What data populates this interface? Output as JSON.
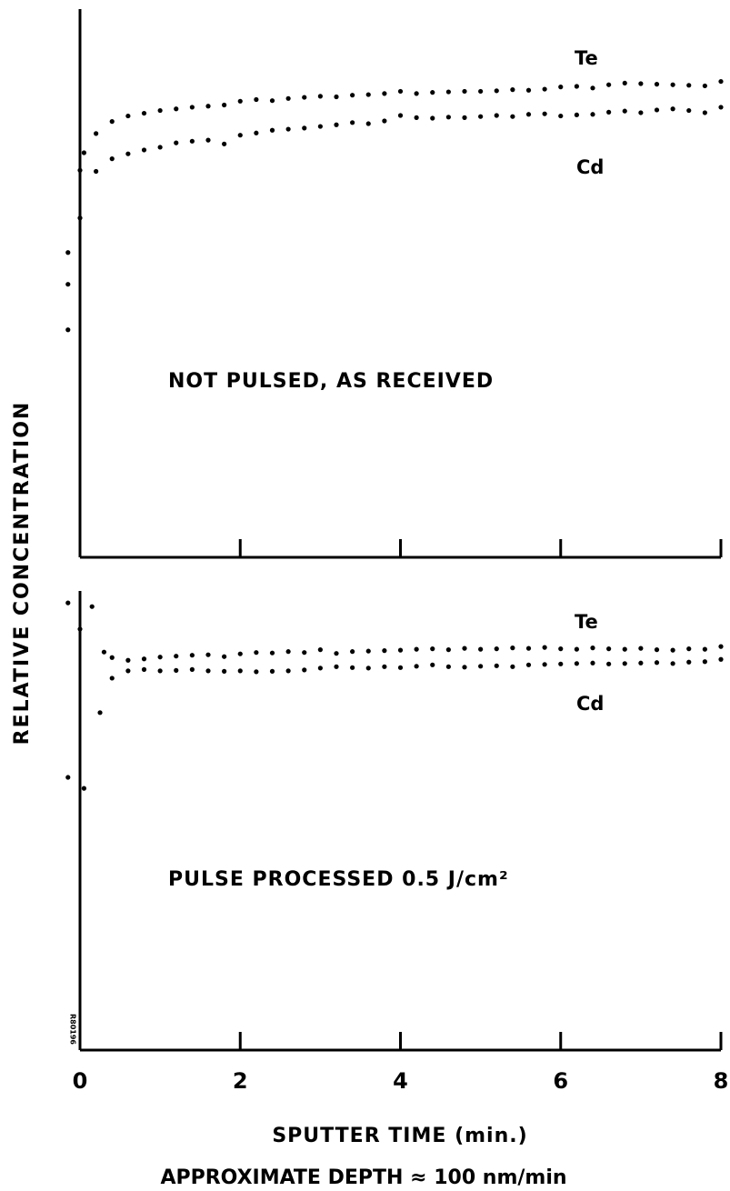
{
  "figure": {
    "ylabel": "RELATIVE CONCENTRATION",
    "xlabel": "SPUTTER TIME (min.)",
    "note": "APPROXIMATE DEPTH ≈ 100 nm/min"
  },
  "chart_data": [
    {
      "type": "scatter",
      "annotation": "NOT PULSED, AS RECEIVED",
      "xlim": [
        0,
        8
      ],
      "xticks": [
        0,
        2,
        4,
        6,
        8
      ],
      "ylim": [
        0,
        100
      ],
      "series": [
        {
          "name": "Te",
          "color": "#000000",
          "x": [
            -0.15,
            -0.15,
            -0.15,
            0,
            0.2,
            0.4,
            0.6,
            0.8,
            1.0,
            1.2,
            1.4,
            1.6,
            1.8,
            2.0,
            2.2,
            2.4,
            2.6,
            2.8,
            3.0,
            3.2,
            3.4,
            3.6,
            3.8,
            4.0,
            4.2,
            4.4,
            4.6,
            4.8,
            5.0,
            5.2,
            5.4,
            5.6,
            5.8,
            6.0,
            6.2,
            6.4,
            6.6,
            6.8,
            7.0,
            7.2,
            7.4,
            7.6,
            7.8,
            8.0
          ],
          "values": [
            41.5,
            49.8,
            55.6,
            61.9,
            77.3,
            79.5,
            80.5,
            81,
            81.5,
            81.8,
            82.1,
            82.3,
            82.5,
            83.2,
            83.5,
            83.3,
            83.7,
            83.9,
            84.1,
            84,
            84.3,
            84.4,
            84.6,
            85,
            84.6,
            84.8,
            84.9,
            85,
            85,
            85.1,
            85.3,
            85.2,
            85.4,
            85.8,
            85.9,
            85.6,
            86.2,
            86.5,
            86.4,
            86.3,
            86.2,
            86.1,
            86,
            86.8
          ]
        },
        {
          "name": "Cd",
          "color": "#000000",
          "x": [
            0,
            0.05,
            0.2,
            0.4,
            0.6,
            0.8,
            1.0,
            1.2,
            1.4,
            1.6,
            1.8,
            2.0,
            2.2,
            2.4,
            2.6,
            2.8,
            3.0,
            3.2,
            3.4,
            3.6,
            3.8,
            4.0,
            4.2,
            4.4,
            4.6,
            4.8,
            5.0,
            5.2,
            5.4,
            5.6,
            5.8,
            6.0,
            6.2,
            6.4,
            6.6,
            6.8,
            7.0,
            7.2,
            7.4,
            7.6,
            7.8,
            8.0
          ],
          "values": [
            70.6,
            73.8,
            70.4,
            72.7,
            73.6,
            74.3,
            74.8,
            75.6,
            75.9,
            76.1,
            75.4,
            77,
            77.4,
            77.9,
            78.1,
            78.3,
            78.6,
            78.9,
            79.3,
            79.1,
            79.6,
            80.6,
            80.2,
            80.1,
            80.3,
            80.2,
            80.4,
            80.6,
            80.4,
            80.8,
            80.9,
            80.5,
            80.7,
            80.8,
            81.2,
            81.4,
            81.1,
            81.6,
            81.8,
            81.5,
            81.1,
            82.1
          ]
        }
      ]
    },
    {
      "type": "scatter",
      "annotation": "PULSE PROCESSED 0.5 J/cm²",
      "id_label": "R80196",
      "xlim": [
        0,
        8
      ],
      "xticks": [
        0,
        2,
        4,
        6,
        8
      ],
      "ylim": [
        0,
        100
      ],
      "series": [
        {
          "name": "Te",
          "color": "#000000",
          "x": [
            -0.15,
            0,
            0.15,
            0.3,
            0.4,
            0.6,
            0.8,
            1.0,
            1.2,
            1.4,
            1.6,
            1.8,
            2.0,
            2.2,
            2.4,
            2.6,
            2.8,
            3.0,
            3.2,
            3.4,
            3.6,
            3.8,
            4.0,
            4.2,
            4.4,
            4.6,
            4.8,
            5.0,
            5.2,
            5.4,
            5.6,
            5.8,
            6.0,
            6.2,
            6.4,
            6.6,
            6.8,
            7.0,
            7.2,
            7.4,
            7.6,
            7.8,
            8.0
          ],
          "values": [
            97.4,
            91.7,
            96.6,
            86.7,
            85.5,
            84.9,
            85.2,
            85.6,
            85.8,
            86,
            86.1,
            85.7,
            86.3,
            86.6,
            86.5,
            86.8,
            86.6,
            87.2,
            86.4,
            86.8,
            86.9,
            87,
            87.1,
            87.3,
            87.4,
            87.2,
            87.5,
            87.3,
            87.4,
            87.6,
            87.5,
            87.7,
            87.4,
            87.3,
            87.6,
            87.4,
            87.3,
            87.5,
            87.2,
            87.1,
            87.4,
            87.3,
            87.9
          ]
        },
        {
          "name": "Cd",
          "color": "#000000",
          "x": [
            -0.15,
            0.05,
            0.25,
            0.4,
            0.6,
            0.8,
            1.0,
            1.2,
            1.4,
            1.6,
            1.8,
            2.0,
            2.2,
            2.4,
            2.6,
            2.8,
            3.0,
            3.2,
            3.4,
            3.6,
            3.8,
            4.0,
            4.2,
            4.4,
            4.6,
            4.8,
            5.0,
            5.2,
            5.4,
            5.6,
            5.8,
            6.0,
            6.2,
            6.4,
            6.6,
            6.8,
            7.0,
            7.2,
            7.4,
            7.6,
            7.8,
            8.0
          ],
          "values": [
            59.4,
            57,
            73.5,
            81,
            82.6,
            82.9,
            82.6,
            82.7,
            82.9,
            82.6,
            82.5,
            82.6,
            82.4,
            82.5,
            82.6,
            82.8,
            83.2,
            83.5,
            83.3,
            83.2,
            83.5,
            83.3,
            83.6,
            83.9,
            83.5,
            83.4,
            83.6,
            83.7,
            83.5,
            83.9,
            84,
            84.1,
            84.2,
            84.3,
            84.1,
            84.2,
            84.3,
            84.4,
            84.2,
            84.5,
            84.6,
            85.1
          ]
        }
      ]
    }
  ]
}
